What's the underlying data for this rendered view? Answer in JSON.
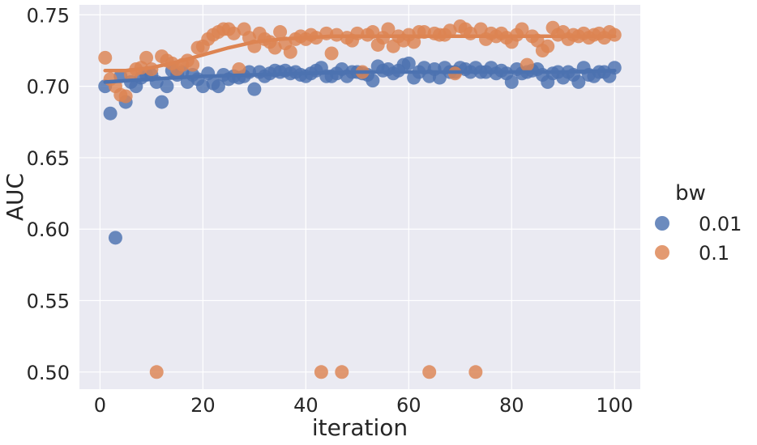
{
  "chart_data": {
    "type": "scatter",
    "xlabel": "iteration",
    "ylabel": "AUC",
    "xlim": [
      -4,
      105
    ],
    "ylim": [
      0.488,
      0.757
    ],
    "xticks": [
      0,
      20,
      40,
      60,
      80,
      100
    ],
    "yticks": [
      0.5,
      0.55,
      0.6,
      0.65,
      0.7,
      0.75
    ],
    "ytick_labels": [
      "0.50",
      "0.55",
      "0.60",
      "0.65",
      "0.70",
      "0.75"
    ],
    "grid": true,
    "background": "#eaeaf2",
    "legend": {
      "title": "bw",
      "placement": "right",
      "entries": [
        "0.01",
        "0.1"
      ]
    },
    "series": [
      {
        "name": "0.01",
        "color": "#4c72b0",
        "points": [
          [
            1,
            0.7
          ],
          [
            2,
            0.681
          ],
          [
            3,
            0.594
          ],
          [
            4,
            0.707
          ],
          [
            5,
            0.689
          ],
          [
            6,
            0.703
          ],
          [
            7,
            0.7
          ],
          [
            8,
            0.706
          ],
          [
            9,
            0.708
          ],
          [
            10,
            0.708
          ],
          [
            11,
            0.703
          ],
          [
            12,
            0.689
          ],
          [
            13,
            0.7
          ],
          [
            14,
            0.711
          ],
          [
            15,
            0.708
          ],
          [
            16,
            0.71
          ],
          [
            17,
            0.703
          ],
          [
            18,
            0.708
          ],
          [
            19,
            0.705
          ],
          [
            20,
            0.7
          ],
          [
            21,
            0.709
          ],
          [
            22,
            0.702
          ],
          [
            23,
            0.7
          ],
          [
            24,
            0.708
          ],
          [
            25,
            0.705
          ],
          [
            26,
            0.707
          ],
          [
            27,
            0.706
          ],
          [
            28,
            0.707
          ],
          [
            29,
            0.71
          ],
          [
            30,
            0.698
          ],
          [
            31,
            0.71
          ],
          [
            32,
            0.707
          ],
          [
            33,
            0.709
          ],
          [
            34,
            0.711
          ],
          [
            35,
            0.71
          ],
          [
            36,
            0.711
          ],
          [
            37,
            0.709
          ],
          [
            38,
            0.71
          ],
          [
            39,
            0.708
          ],
          [
            40,
            0.707
          ],
          [
            41,
            0.709
          ],
          [
            42,
            0.711
          ],
          [
            43,
            0.713
          ],
          [
            44,
            0.707
          ],
          [
            45,
            0.707
          ],
          [
            46,
            0.709
          ],
          [
            47,
            0.712
          ],
          [
            48,
            0.707
          ],
          [
            49,
            0.71
          ],
          [
            50,
            0.71
          ],
          [
            51,
            0.709
          ],
          [
            52,
            0.708
          ],
          [
            53,
            0.704
          ],
          [
            54,
            0.714
          ],
          [
            55,
            0.711
          ],
          [
            56,
            0.712
          ],
          [
            57,
            0.709
          ],
          [
            58,
            0.711
          ],
          [
            59,
            0.715
          ],
          [
            60,
            0.716
          ],
          [
            61,
            0.706
          ],
          [
            62,
            0.71
          ],
          [
            63,
            0.713
          ],
          [
            64,
            0.707
          ],
          [
            65,
            0.712
          ],
          [
            66,
            0.706
          ],
          [
            67,
            0.713
          ],
          [
            68,
            0.71
          ],
          [
            69,
            0.71
          ],
          [
            70,
            0.713
          ],
          [
            71,
            0.712
          ],
          [
            72,
            0.71
          ],
          [
            73,
            0.713
          ],
          [
            74,
            0.71
          ],
          [
            75,
            0.71
          ],
          [
            76,
            0.713
          ],
          [
            77,
            0.709
          ],
          [
            78,
            0.711
          ],
          [
            79,
            0.709
          ],
          [
            80,
            0.703
          ],
          [
            81,
            0.712
          ],
          [
            82,
            0.709
          ],
          [
            83,
            0.71
          ],
          [
            84,
            0.711
          ],
          [
            85,
            0.712
          ],
          [
            86,
            0.708
          ],
          [
            87,
            0.703
          ],
          [
            88,
            0.709
          ],
          [
            89,
            0.71
          ],
          [
            90,
            0.706
          ],
          [
            91,
            0.71
          ],
          [
            92,
            0.708
          ],
          [
            93,
            0.703
          ],
          [
            94,
            0.713
          ],
          [
            95,
            0.708
          ],
          [
            96,
            0.707
          ],
          [
            97,
            0.71
          ],
          [
            98,
            0.71
          ],
          [
            99,
            0.707
          ],
          [
            100,
            0.713
          ]
        ],
        "trend": [
          [
            1,
            0.703
          ],
          [
            10,
            0.705
          ],
          [
            20,
            0.707
          ],
          [
            30,
            0.708
          ],
          [
            40,
            0.709
          ],
          [
            50,
            0.71
          ],
          [
            60,
            0.71
          ],
          [
            70,
            0.71
          ],
          [
            80,
            0.71
          ],
          [
            90,
            0.71
          ],
          [
            100,
            0.711
          ]
        ]
      },
      {
        "name": "0.1",
        "color": "#dd8452",
        "points": [
          [
            1,
            0.72
          ],
          [
            2,
            0.705
          ],
          [
            3,
            0.7
          ],
          [
            4,
            0.694
          ],
          [
            5,
            0.693
          ],
          [
            6,
            0.708
          ],
          [
            7,
            0.712
          ],
          [
            8,
            0.713
          ],
          [
            9,
            0.72
          ],
          [
            10,
            0.712
          ],
          [
            11,
            0.5
          ],
          [
            12,
            0.721
          ],
          [
            13,
            0.718
          ],
          [
            14,
            0.716
          ],
          [
            15,
            0.712
          ],
          [
            16,
            0.715
          ],
          [
            17,
            0.718
          ],
          [
            18,
            0.715
          ],
          [
            19,
            0.727
          ],
          [
            20,
            0.728
          ],
          [
            21,
            0.733
          ],
          [
            22,
            0.736
          ],
          [
            23,
            0.738
          ],
          [
            24,
            0.74
          ],
          [
            25,
            0.74
          ],
          [
            26,
            0.737
          ],
          [
            27,
            0.712
          ],
          [
            28,
            0.74
          ],
          [
            29,
            0.734
          ],
          [
            30,
            0.728
          ],
          [
            31,
            0.737
          ],
          [
            32,
            0.733
          ],
          [
            33,
            0.731
          ],
          [
            34,
            0.727
          ],
          [
            35,
            0.738
          ],
          [
            36,
            0.73
          ],
          [
            37,
            0.724
          ],
          [
            38,
            0.733
          ],
          [
            39,
            0.735
          ],
          [
            40,
            0.733
          ],
          [
            41,
            0.736
          ],
          [
            42,
            0.734
          ],
          [
            43,
            0.5
          ],
          [
            44,
            0.737
          ],
          [
            45,
            0.723
          ],
          [
            46,
            0.736
          ],
          [
            47,
            0.5
          ],
          [
            48,
            0.734
          ],
          [
            49,
            0.732
          ],
          [
            50,
            0.737
          ],
          [
            51,
            0.71
          ],
          [
            52,
            0.736
          ],
          [
            53,
            0.738
          ],
          [
            54,
            0.729
          ],
          [
            55,
            0.734
          ],
          [
            56,
            0.74
          ],
          [
            57,
            0.728
          ],
          [
            58,
            0.735
          ],
          [
            59,
            0.732
          ],
          [
            60,
            0.736
          ],
          [
            61,
            0.731
          ],
          [
            62,
            0.738
          ],
          [
            63,
            0.738
          ],
          [
            64,
            0.5
          ],
          [
            65,
            0.737
          ],
          [
            66,
            0.736
          ],
          [
            67,
            0.736
          ],
          [
            68,
            0.739
          ],
          [
            69,
            0.709
          ],
          [
            70,
            0.742
          ],
          [
            71,
            0.74
          ],
          [
            72,
            0.737
          ],
          [
            73,
            0.5
          ],
          [
            74,
            0.74
          ],
          [
            75,
            0.733
          ],
          [
            76,
            0.737
          ],
          [
            77,
            0.735
          ],
          [
            78,
            0.737
          ],
          [
            79,
            0.734
          ],
          [
            80,
            0.731
          ],
          [
            81,
            0.736
          ],
          [
            82,
            0.74
          ],
          [
            83,
            0.715
          ],
          [
            84,
            0.735
          ],
          [
            85,
            0.732
          ],
          [
            86,
            0.725
          ],
          [
            87,
            0.728
          ],
          [
            88,
            0.741
          ],
          [
            89,
            0.736
          ],
          [
            90,
            0.738
          ],
          [
            91,
            0.733
          ],
          [
            92,
            0.736
          ],
          [
            93,
            0.735
          ],
          [
            94,
            0.737
          ],
          [
            95,
            0.734
          ],
          [
            96,
            0.736
          ],
          [
            97,
            0.737
          ],
          [
            98,
            0.734
          ],
          [
            99,
            0.738
          ],
          [
            100,
            0.736
          ]
        ],
        "trend": [
          [
            1,
            0.711
          ],
          [
            5,
            0.711
          ],
          [
            10,
            0.713
          ],
          [
            15,
            0.717
          ],
          [
            20,
            0.722
          ],
          [
            25,
            0.727
          ],
          [
            30,
            0.731
          ],
          [
            35,
            0.733
          ],
          [
            40,
            0.734
          ],
          [
            45,
            0.735
          ],
          [
            50,
            0.735
          ],
          [
            55,
            0.735
          ],
          [
            60,
            0.735
          ],
          [
            65,
            0.735
          ],
          [
            70,
            0.735
          ],
          [
            75,
            0.735
          ],
          [
            80,
            0.735
          ],
          [
            85,
            0.735
          ],
          [
            90,
            0.735
          ],
          [
            95,
            0.735
          ],
          [
            100,
            0.735
          ]
        ]
      }
    ]
  }
}
